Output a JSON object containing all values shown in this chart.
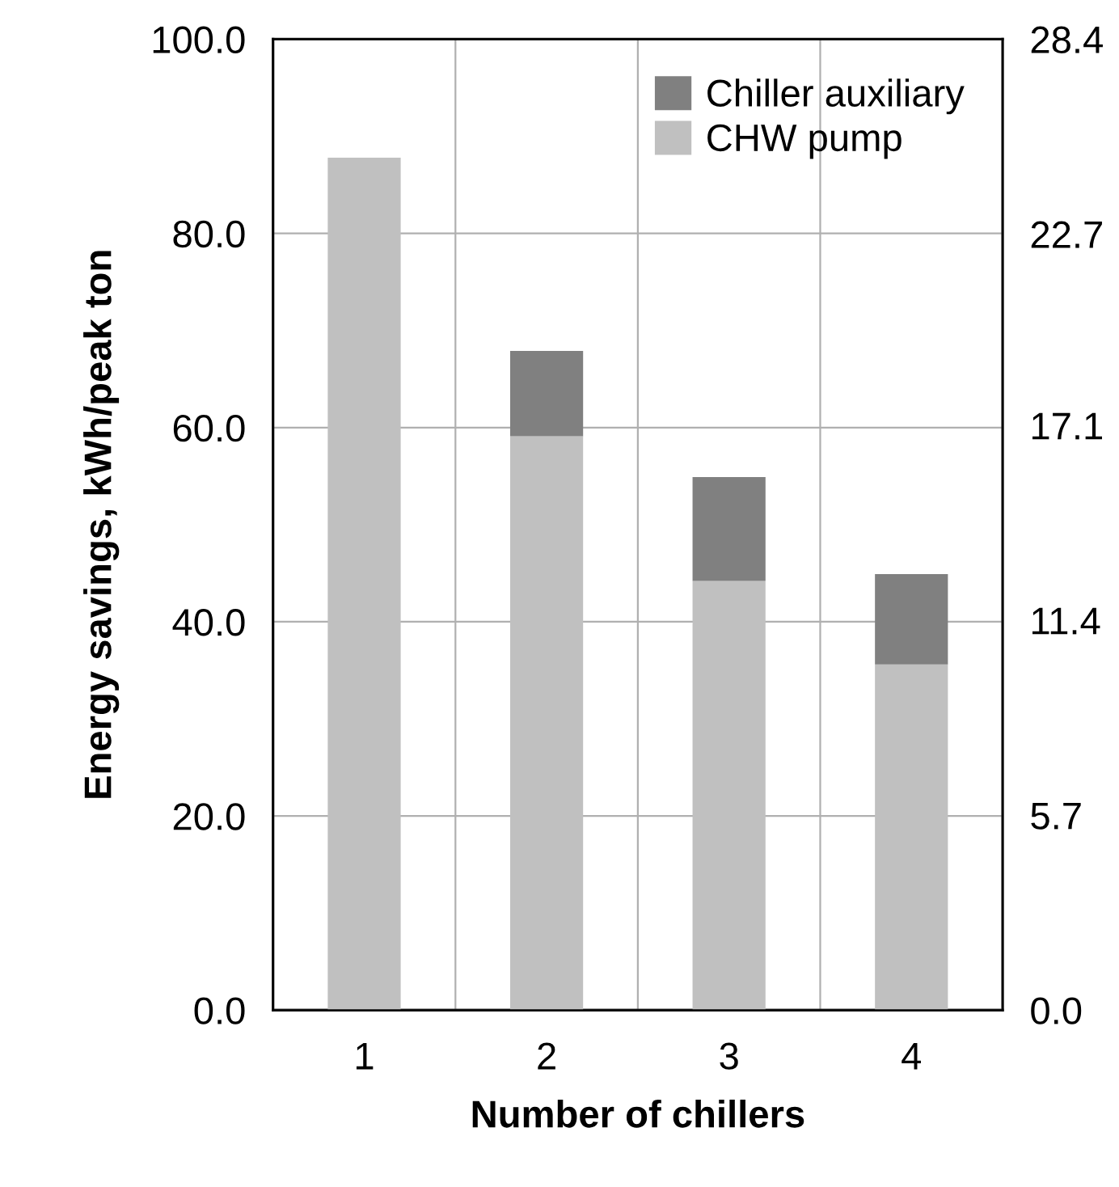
{
  "chart_data": {
    "type": "bar",
    "stacked": true,
    "xlabel": "Number of chillers",
    "ylabel": "Energy savings, kWh/peak ton",
    "categories": [
      "1",
      "2",
      "3",
      "4"
    ],
    "series": [
      {
        "name": "CHW pump",
        "color": "#c0c0c0",
        "values": [
          87.8,
          59.1,
          44.2,
          35.6
        ]
      },
      {
        "name": "Chiller auxiliary",
        "color": "#808080",
        "values": [
          0,
          8.8,
          10.7,
          9.3
        ]
      }
    ],
    "ylim": [
      0,
      100
    ],
    "yticks": [
      {
        "value": 0,
        "label": "0.0"
      },
      {
        "value": 20,
        "label": "20.0"
      },
      {
        "value": 40,
        "label": "40.0"
      },
      {
        "value": 60,
        "label": "60.0"
      },
      {
        "value": 80,
        "label": "80.0"
      },
      {
        "value": 100,
        "label": "100.0"
      }
    ],
    "y2lim": [
      0,
      28.4
    ],
    "y2ticks": [
      {
        "value": 0,
        "label": "0.0"
      },
      5.7,
      11.4,
      17.1,
      22.7,
      28.4
    ],
    "grid": true,
    "legend": "top right"
  }
}
